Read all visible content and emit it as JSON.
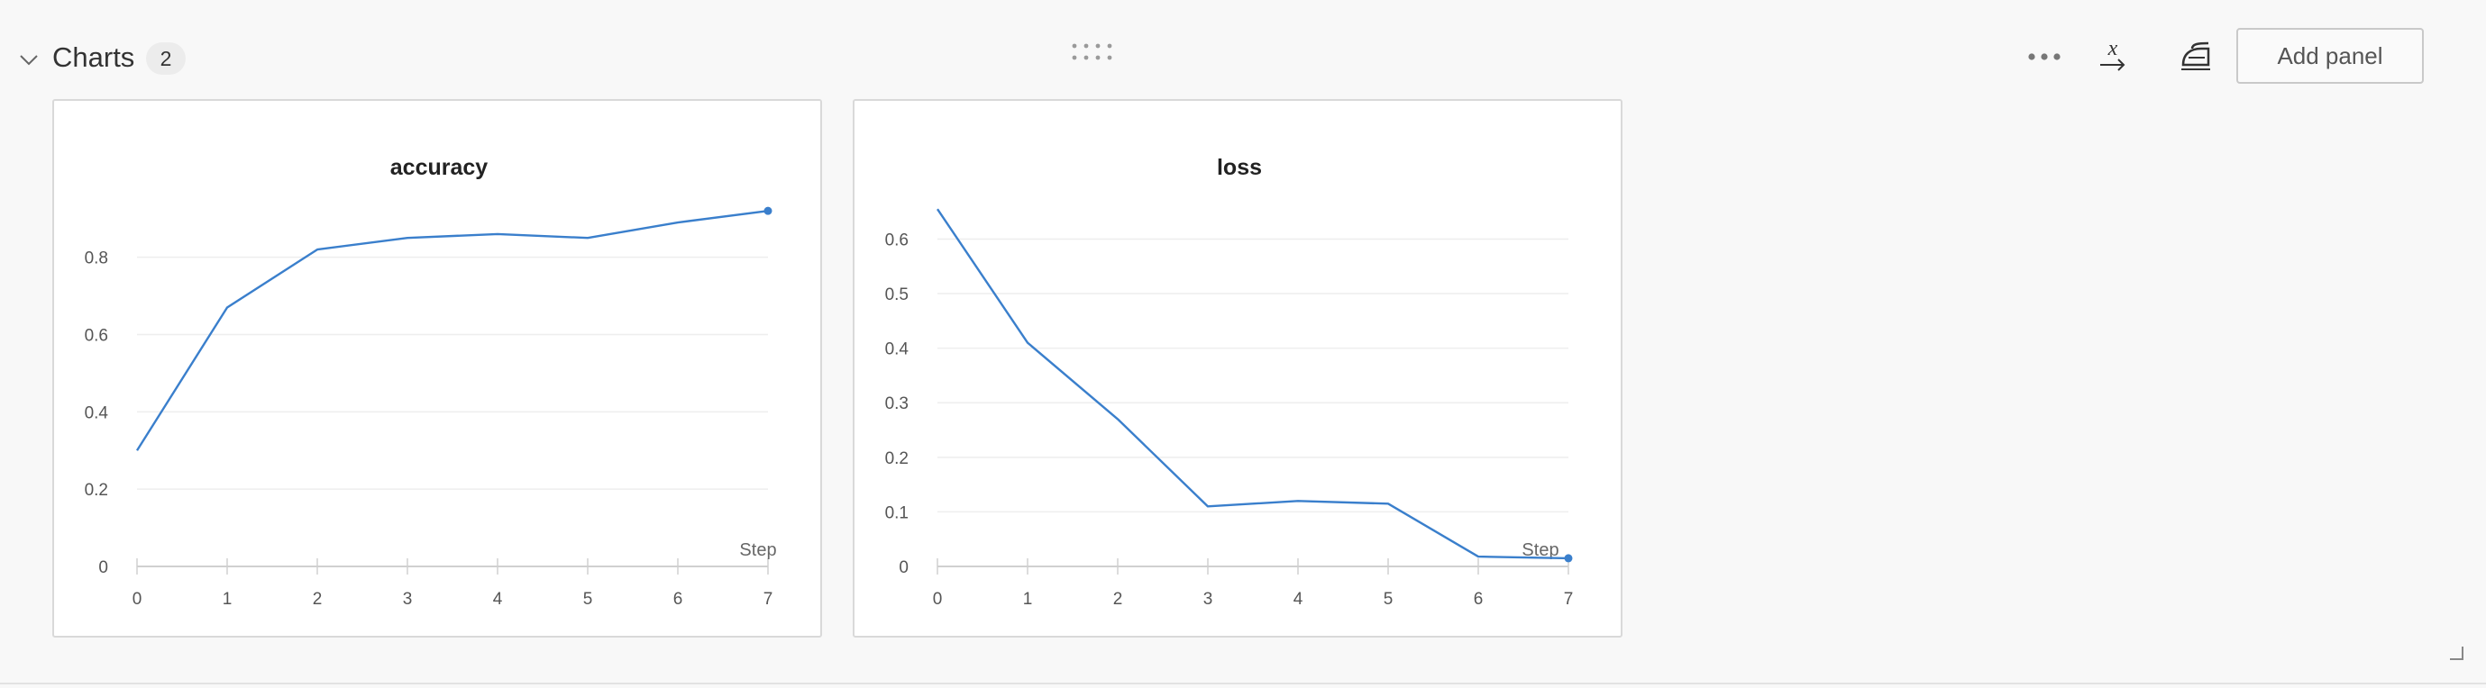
{
  "section": {
    "title": "Charts",
    "count": "2",
    "add_panel_label": "Add panel",
    "icons": {
      "collapse": "chevron-down-icon",
      "drag": "drag-handle-icon",
      "more": "more-horizontal-icon",
      "xaxis": "x-axis-icon",
      "clean": "clean-iron-icon",
      "resize": "resize-corner-icon"
    }
  },
  "colors": {
    "line": "#3a7fcc",
    "grid": "#eeeeee",
    "axis": "#d0d0d0"
  },
  "chart_data": [
    {
      "type": "line",
      "title": "accuracy",
      "xlabel": "Step",
      "ylabel": "",
      "x": [
        0,
        1,
        2,
        3,
        4,
        5,
        6,
        7
      ],
      "xticks": [
        "0",
        "1",
        "2",
        "3",
        "4",
        "5",
        "6",
        "7"
      ],
      "yticks": [
        "0",
        "0.2",
        "0.4",
        "0.6",
        "0.8"
      ],
      "ytick_values": [
        0,
        0.2,
        0.4,
        0.6,
        0.8
      ],
      "xlim": [
        0,
        7
      ],
      "ylim": [
        0,
        0.96
      ],
      "grid": true,
      "series": [
        {
          "values": [
            0.3,
            0.67,
            0.82,
            0.85,
            0.86,
            0.85,
            0.89,
            0.92
          ]
        }
      ]
    },
    {
      "type": "line",
      "title": "loss",
      "xlabel": "Step",
      "ylabel": "",
      "x": [
        0,
        1,
        2,
        3,
        4,
        5,
        6,
        7
      ],
      "xticks": [
        "0",
        "1",
        "2",
        "3",
        "4",
        "5",
        "6",
        "7"
      ],
      "yticks": [
        "0",
        "0.1",
        "0.2",
        "0.3",
        "0.4",
        "0.5",
        "0.6"
      ],
      "ytick_values": [
        0,
        0.1,
        0.2,
        0.3,
        0.4,
        0.5,
        0.6
      ],
      "xlim": [
        0,
        7
      ],
      "ylim": [
        0,
        0.68
      ],
      "grid": true,
      "series": [
        {
          "values": [
            0.655,
            0.41,
            0.27,
            0.11,
            0.12,
            0.115,
            0.018,
            0.015
          ]
        }
      ]
    }
  ]
}
